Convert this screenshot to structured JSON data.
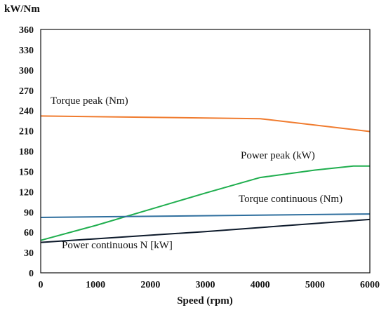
{
  "chart_data": {
    "type": "line",
    "xlabel": "Speed (rpm)",
    "ylabel": "kW/Nm",
    "xlim": [
      0,
      6000
    ],
    "ylim": [
      0,
      360
    ],
    "xticks": [
      0,
      1000,
      2000,
      3000,
      4000,
      5000,
      6000
    ],
    "yticks": [
      0,
      30,
      60,
      90,
      120,
      150,
      180,
      210,
      240,
      270,
      300,
      330,
      360
    ],
    "grid": false,
    "series": [
      {
        "name": "Torque peak (Nm)",
        "color": "#f07b2e",
        "x": [
          0,
          4000,
          6000
        ],
        "y": [
          232,
          228,
          209
        ]
      },
      {
        "name": "Power peak (kW)",
        "color": "#1fae4e",
        "x": [
          0,
          1000,
          2000,
          3000,
          4000,
          5000,
          5700,
          6000
        ],
        "y": [
          48,
          70,
          94,
          118,
          141,
          152,
          158,
          158
        ]
      },
      {
        "name": "Torque continuous (Nm)",
        "color": "#2f6f9e",
        "x": [
          0,
          6000
        ],
        "y": [
          82,
          87
        ]
      },
      {
        "name": "Power continuous N [kW]",
        "color": "#0d1a2b",
        "x": [
          0,
          3000,
          6000
        ],
        "y": [
          45,
          61,
          79
        ]
      }
    ]
  }
}
